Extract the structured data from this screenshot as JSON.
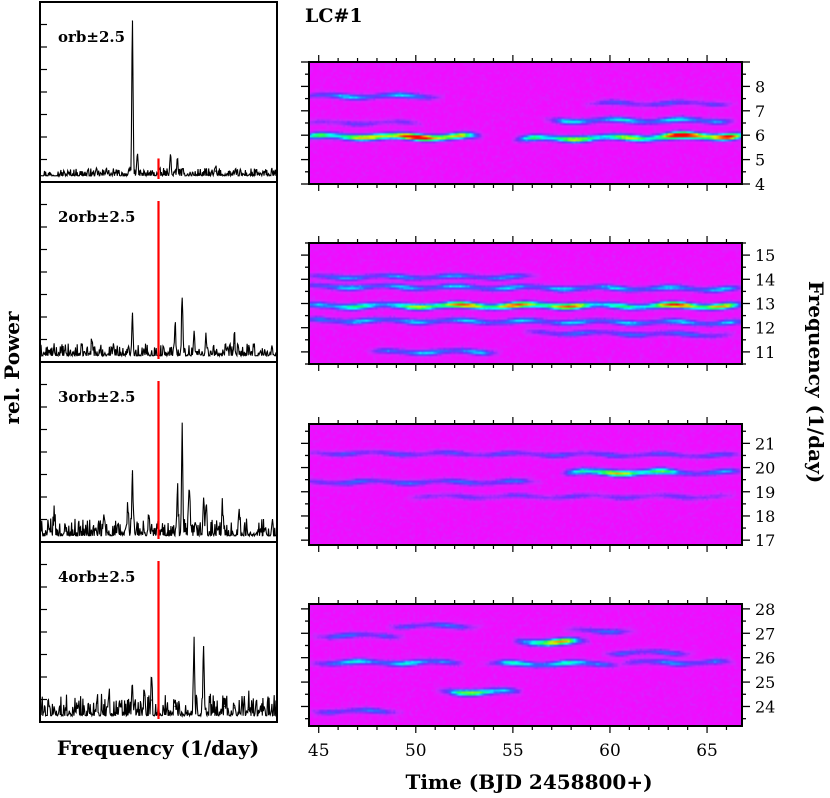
{
  "figure_title": "LC#1",
  "left_ylabel": "rel. Power",
  "left_xlabel": "Frequency (1/day)",
  "right_xlabel": "Time (BJD 2458800+)",
  "right_ylabel": "Frequency (1/day)",
  "colors": {
    "trace": "#000000",
    "marker": "#ff0000",
    "heat_low": "#ff00ff",
    "heat_mid": "#00ffff",
    "heat_high": "#ff0000"
  },
  "chart_data": [
    {
      "type": "line",
      "panel": "periodogram-1",
      "label": "orb±2.5",
      "x_range": [
        -2.5,
        2.5
      ],
      "marker_x": 0.0,
      "peaks": [
        {
          "x": -0.55,
          "y": 1.0
        },
        {
          "x": -0.45,
          "y": 0.12
        },
        {
          "x": 0.25,
          "y": 0.13
        },
        {
          "x": 0.4,
          "y": 0.1
        },
        {
          "x": -1.1,
          "y": 0.05
        },
        {
          "x": 1.2,
          "y": 0.05
        }
      ],
      "marker_height": 0.13
    },
    {
      "type": "line",
      "panel": "periodogram-2",
      "label": "2orb±2.5",
      "x_range": [
        -2.5,
        2.5
      ],
      "marker_x": 0.0,
      "peaks": [
        {
          "x": -0.55,
          "y": 0.27
        },
        {
          "x": 0.5,
          "y": 0.36
        },
        {
          "x": 0.35,
          "y": 0.2
        },
        {
          "x": 0.75,
          "y": 0.15
        },
        {
          "x": 1.0,
          "y": 0.12
        },
        {
          "x": -1.4,
          "y": 0.1
        },
        {
          "x": 1.6,
          "y": 0.1
        },
        {
          "x": -0.95,
          "y": 0.08
        }
      ],
      "marker_height": 1.0
    },
    {
      "type": "line",
      "panel": "periodogram-3",
      "label": "3orb±2.5",
      "x_range": [
        -2.5,
        2.5
      ],
      "marker_x": 0.0,
      "peaks": [
        {
          "x": 0.5,
          "y": 0.61
        },
        {
          "x": -0.55,
          "y": 0.41
        },
        {
          "x": 0.65,
          "y": 0.3
        },
        {
          "x": 0.4,
          "y": 0.28
        },
        {
          "x": -0.65,
          "y": 0.18
        },
        {
          "x": 0.95,
          "y": 0.22
        },
        {
          "x": 1.0,
          "y": 0.18
        },
        {
          "x": 1.35,
          "y": 0.15
        },
        {
          "x": 1.7,
          "y": 0.14
        },
        {
          "x": -1.15,
          "y": 0.13
        },
        {
          "x": -2.2,
          "y": 0.12
        },
        {
          "x": -0.2,
          "y": 0.13
        }
      ],
      "marker_height": 1.0
    },
    {
      "type": "line",
      "panel": "periodogram-4",
      "label": "4orb±2.5",
      "x_range": [
        -2.5,
        2.5
      ],
      "marker_x": 0.0,
      "peaks": [
        {
          "x": 0.75,
          "y": 0.45
        },
        {
          "x": 0.95,
          "y": 0.45
        },
        {
          "x": -0.3,
          "y": 0.15
        },
        {
          "x": -0.55,
          "y": 0.18
        },
        {
          "x": -0.15,
          "y": 0.12
        },
        {
          "x": 0.35,
          "y": 0.08
        },
        {
          "x": -1.05,
          "y": 0.13
        },
        {
          "x": -1.3,
          "y": 0.1
        },
        {
          "x": -1.7,
          "y": 0.07
        },
        {
          "x": 1.4,
          "y": 0.08
        },
        {
          "x": 1.6,
          "y": 0.07
        },
        {
          "x": 1.9,
          "y": 0.06
        }
      ],
      "marker_height": 1.0
    },
    {
      "type": "heatmap",
      "panel": "timefreq-1",
      "x_range": [
        44.5,
        66.8
      ],
      "y_range": [
        4,
        9
      ],
      "x_ticks": [
        45,
        50,
        55,
        60,
        65
      ],
      "y_ticks": [
        4,
        5,
        6,
        7,
        8
      ],
      "ridges": [
        {
          "f0": 5.95,
          "f1": 5.95,
          "t0": 44.5,
          "t1": 53,
          "amp": 0.75,
          "w": 0.13
        },
        {
          "f0": 5.9,
          "f1": 5.9,
          "t0": 48,
          "t1": 52,
          "amp": 0.4,
          "w": 0.12
        },
        {
          "f0": 5.85,
          "f1": 5.95,
          "t0": 55.5,
          "t1": 66.8,
          "amp": 0.7,
          "w": 0.13
        },
        {
          "f0": 6.0,
          "f1": 6.0,
          "t0": 62.5,
          "t1": 66.5,
          "amp": 0.5,
          "w": 0.12
        },
        {
          "f0": 7.6,
          "f1": 7.6,
          "t0": 44.5,
          "t1": 51,
          "amp": 0.4,
          "w": 0.12
        },
        {
          "f0": 6.6,
          "f1": 6.6,
          "t0": 57,
          "t1": 66,
          "amp": 0.45,
          "w": 0.12
        },
        {
          "f0": 7.3,
          "f1": 7.3,
          "t0": 59,
          "t1": 66,
          "amp": 0.25,
          "w": 0.12
        },
        {
          "f0": 6.5,
          "f1": 6.5,
          "t0": 44.5,
          "t1": 50,
          "amp": 0.2,
          "w": 0.12
        }
      ]
    },
    {
      "type": "heatmap",
      "panel": "timefreq-2",
      "x_range": [
        44.5,
        66.8
      ],
      "y_range": [
        10.5,
        15.5
      ],
      "x_ticks": [
        45,
        50,
        55,
        60,
        65
      ],
      "y_ticks": [
        11,
        12,
        13,
        14,
        15
      ],
      "ridges": [
        {
          "f0": 12.9,
          "f1": 12.9,
          "t0": 44.5,
          "t1": 66.8,
          "amp": 0.55,
          "w": 0.13
        },
        {
          "f0": 12.9,
          "f1": 12.95,
          "t0": 50,
          "t1": 59,
          "amp": 0.35,
          "w": 0.12
        },
        {
          "f0": 12.9,
          "f1": 12.9,
          "t0": 62,
          "t1": 66,
          "amp": 0.4,
          "w": 0.12
        },
        {
          "f0": 13.7,
          "f1": 13.6,
          "t0": 44.5,
          "t1": 66.8,
          "amp": 0.4,
          "w": 0.12
        },
        {
          "f0": 12.3,
          "f1": 12.2,
          "t0": 44.5,
          "t1": 66.8,
          "amp": 0.4,
          "w": 0.12
        },
        {
          "f0": 14.1,
          "f1": 14.1,
          "t0": 44.5,
          "t1": 56,
          "amp": 0.35,
          "w": 0.12
        },
        {
          "f0": 11.0,
          "f1": 11.0,
          "t0": 48,
          "t1": 54,
          "amp": 0.4,
          "w": 0.12
        },
        {
          "f0": 11.8,
          "f1": 11.7,
          "t0": 56,
          "t1": 66,
          "amp": 0.3,
          "w": 0.12
        }
      ]
    },
    {
      "type": "heatmap",
      "panel": "timefreq-3",
      "x_range": [
        44.5,
        66.8
      ],
      "y_range": [
        16.8,
        21.8
      ],
      "x_ticks": [
        45,
        50,
        55,
        60,
        65
      ],
      "y_ticks": [
        17,
        18,
        19,
        20,
        21
      ],
      "ridges": [
        {
          "f0": 19.8,
          "f1": 19.8,
          "t0": 58,
          "t1": 63,
          "amp": 0.75,
          "w": 0.13
        },
        {
          "f0": 19.8,
          "f1": 19.8,
          "t0": 63,
          "t1": 66.8,
          "amp": 0.35,
          "w": 0.12
        },
        {
          "f0": 19.4,
          "f1": 19.4,
          "t0": 44.5,
          "t1": 56,
          "amp": 0.3,
          "w": 0.12
        },
        {
          "f0": 20.6,
          "f1": 20.5,
          "t0": 44.5,
          "t1": 66.8,
          "amp": 0.25,
          "w": 0.12
        },
        {
          "f0": 18.8,
          "f1": 18.8,
          "t0": 50,
          "t1": 66,
          "amp": 0.2,
          "w": 0.12
        }
      ]
    },
    {
      "type": "heatmap",
      "panel": "timefreq-4",
      "x_range": [
        44.5,
        66.8
      ],
      "y_range": [
        23.2,
        28.2
      ],
      "x_ticks": [
        45,
        50,
        55,
        60,
        65
      ],
      "y_ticks": [
        24,
        25,
        26,
        27,
        28
      ],
      "ridges": [
        {
          "f0": 26.65,
          "f1": 26.65,
          "t0": 55.5,
          "t1": 58.5,
          "amp": 0.8,
          "w": 0.14
        },
        {
          "f0": 24.6,
          "f1": 24.6,
          "t0": 51.5,
          "t1": 55,
          "amp": 0.65,
          "w": 0.13
        },
        {
          "f0": 25.75,
          "f1": 25.75,
          "t0": 54,
          "t1": 60,
          "amp": 0.5,
          "w": 0.12
        },
        {
          "f0": 25.8,
          "f1": 25.8,
          "t0": 45,
          "t1": 52,
          "amp": 0.45,
          "w": 0.12
        },
        {
          "f0": 26.9,
          "f1": 26.9,
          "t0": 45,
          "t1": 49,
          "amp": 0.3,
          "w": 0.12
        },
        {
          "f0": 27.3,
          "f1": 27.3,
          "t0": 49,
          "t1": 53,
          "amp": 0.3,
          "w": 0.12
        },
        {
          "f0": 25.8,
          "f1": 25.8,
          "t0": 61,
          "t1": 66,
          "amp": 0.35,
          "w": 0.12
        },
        {
          "f0": 23.8,
          "f1": 23.8,
          "t0": 45,
          "t1": 49,
          "amp": 0.3,
          "w": 0.12
        },
        {
          "f0": 26.2,
          "f1": 26.2,
          "t0": 60,
          "t1": 64,
          "amp": 0.3,
          "w": 0.12
        },
        {
          "f0": 27.1,
          "f1": 27.1,
          "t0": 58,
          "t1": 61,
          "amp": 0.3,
          "w": 0.12
        }
      ]
    }
  ]
}
